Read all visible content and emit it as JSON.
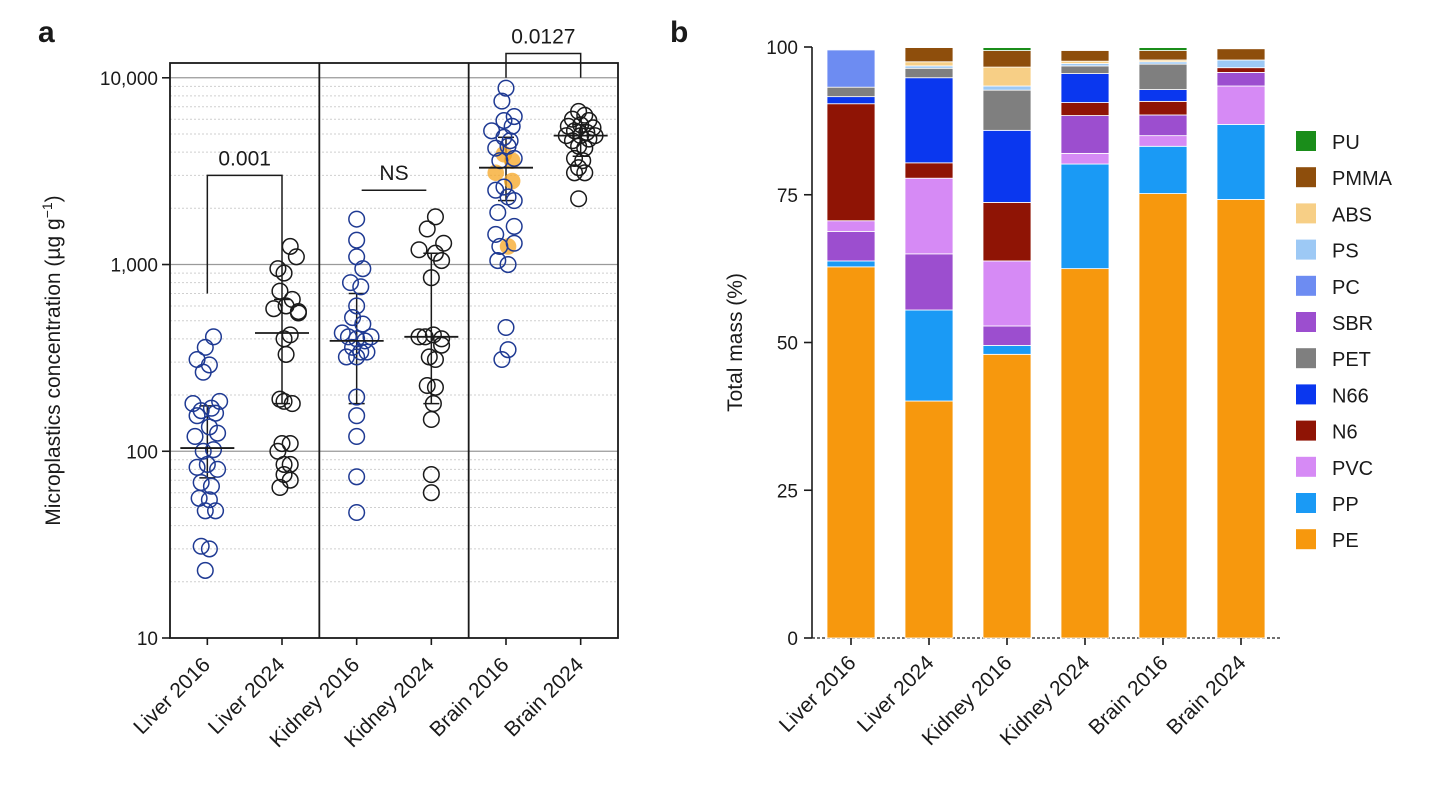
{
  "panels": {
    "a_label": "a",
    "b_label": "b"
  },
  "colors": {
    "open_marker_2016": "#1f3a93",
    "open_marker_2024": "#1a1a1a",
    "highlight_marker": "#f5a623",
    "grid": "#9a9a9a",
    "axis": "#1a1a1a"
  },
  "chart_data": [
    {
      "type": "scatter",
      "panel": "a",
      "ylabel_main": "Microplastics concentration (µg g",
      "ylabel_sup": "−1",
      "ylabel_close": ")",
      "y_scale": "log",
      "ylim": [
        10,
        12000
      ],
      "y_ticks": [
        {
          "value": 10,
          "label": "10"
        },
        {
          "value": 100,
          "label": "100"
        },
        {
          "value": 1000,
          "label": "1,000"
        },
        {
          "value": 10000,
          "label": "10,000"
        }
      ],
      "grid": true,
      "categories": [
        "Liver 2016",
        "Liver 2024",
        "Kidney 2016",
        "Kidney 2024",
        "Brain 2016",
        "Brain 2024"
      ],
      "groups": [
        {
          "category": "Liver 2016",
          "color": "open_marker_2016",
          "median": 104,
          "whisker_low": 72,
          "whisker_high": 175,
          "points": [
            {
              "dx": -0.35,
              "v": 180
            },
            {
              "dx": -0.15,
              "v": 165
            },
            {
              "dx": 0.1,
              "v": 170
            },
            {
              "dx": 0.3,
              "v": 185
            },
            {
              "dx": -0.25,
              "v": 155
            },
            {
              "dx": 0.2,
              "v": 160
            },
            {
              "dx": -0.3,
              "v": 120
            },
            {
              "dx": 0.05,
              "v": 135
            },
            {
              "dx": 0.25,
              "v": 125
            },
            {
              "dx": -0.1,
              "v": 100
            },
            {
              "dx": 0.15,
              "v": 102
            },
            {
              "dx": -0.25,
              "v": 82
            },
            {
              "dx": 0.0,
              "v": 85
            },
            {
              "dx": 0.25,
              "v": 80
            },
            {
              "dx": -0.15,
              "v": 68
            },
            {
              "dx": 0.1,
              "v": 65
            },
            {
              "dx": -0.2,
              "v": 56
            },
            {
              "dx": 0.05,
              "v": 55
            },
            {
              "dx": -0.05,
              "v": 48
            },
            {
              "dx": 0.2,
              "v": 48
            },
            {
              "dx": -0.15,
              "v": 31
            },
            {
              "dx": 0.05,
              "v": 30
            },
            {
              "dx": -0.05,
              "v": 23
            },
            {
              "dx": -0.25,
              "v": 310
            },
            {
              "dx": 0.05,
              "v": 290
            },
            {
              "dx": -0.05,
              "v": 360
            },
            {
              "dx": 0.15,
              "v": 410
            },
            {
              "dx": -0.1,
              "v": 265
            }
          ]
        },
        {
          "category": "Liver 2024",
          "color": "open_marker_2024",
          "median": 430,
          "whisker_low": 180,
          "whisker_high": 650,
          "points": [
            {
              "dx": 0.2,
              "v": 1250
            },
            {
              "dx": 0.35,
              "v": 1100
            },
            {
              "dx": -0.1,
              "v": 950
            },
            {
              "dx": 0.05,
              "v": 900
            },
            {
              "dx": -0.05,
              "v": 720
            },
            {
              "dx": 0.25,
              "v": 650
            },
            {
              "dx": 0.1,
              "v": 600
            },
            {
              "dx": -0.2,
              "v": 580
            },
            {
              "dx": 0.4,
              "v": 560
            },
            {
              "dx": 0.2,
              "v": 420
            },
            {
              "dx": 0.05,
              "v": 400
            },
            {
              "dx": 0.1,
              "v": 330
            },
            {
              "dx": -0.05,
              "v": 190
            },
            {
              "dx": 0.05,
              "v": 185
            },
            {
              "dx": 0.25,
              "v": 180
            },
            {
              "dx": 0.0,
              "v": 110
            },
            {
              "dx": 0.2,
              "v": 110
            },
            {
              "dx": -0.1,
              "v": 100
            },
            {
              "dx": 0.05,
              "v": 85
            },
            {
              "dx": 0.2,
              "v": 85
            },
            {
              "dx": 0.05,
              "v": 75
            },
            {
              "dx": 0.2,
              "v": 70
            },
            {
              "dx": -0.05,
              "v": 64
            },
            {
              "dx": 0.4,
              "v": 550
            }
          ]
        },
        {
          "category": "Kidney 2016",
          "color": "open_marker_2016",
          "median": 390,
          "whisker_low": 180,
          "whisker_high": 700,
          "points": [
            {
              "dx": 0.0,
              "v": 1750
            },
            {
              "dx": 0.0,
              "v": 1350
            },
            {
              "dx": 0.0,
              "v": 1100
            },
            {
              "dx": 0.15,
              "v": 950
            },
            {
              "dx": -0.15,
              "v": 800
            },
            {
              "dx": 0.1,
              "v": 760
            },
            {
              "dx": 0.0,
              "v": 600
            },
            {
              "dx": -0.1,
              "v": 520
            },
            {
              "dx": 0.15,
              "v": 480
            },
            {
              "dx": -0.35,
              "v": 430
            },
            {
              "dx": -0.2,
              "v": 410
            },
            {
              "dx": 0.0,
              "v": 400
            },
            {
              "dx": 0.2,
              "v": 390
            },
            {
              "dx": -0.1,
              "v": 360
            },
            {
              "dx": 0.1,
              "v": 340
            },
            {
              "dx": -0.25,
              "v": 320
            },
            {
              "dx": 0.0,
              "v": 320
            },
            {
              "dx": 0.25,
              "v": 340
            },
            {
              "dx": 0.0,
              "v": 195
            },
            {
              "dx": 0.0,
              "v": 155
            },
            {
              "dx": 0.0,
              "v": 120
            },
            {
              "dx": 0.0,
              "v": 73
            },
            {
              "dx": 0.0,
              "v": 47
            },
            {
              "dx": 0.35,
              "v": 410
            }
          ]
        },
        {
          "category": "Kidney 2024",
          "color": "open_marker_2024",
          "median": 410,
          "whisker_low": 180,
          "whisker_high": 1150,
          "points": [
            {
              "dx": 0.1,
              "v": 1800
            },
            {
              "dx": -0.1,
              "v": 1550
            },
            {
              "dx": 0.3,
              "v": 1300
            },
            {
              "dx": -0.3,
              "v": 1200
            },
            {
              "dx": 0.1,
              "v": 1150
            },
            {
              "dx": 0.25,
              "v": 1050
            },
            {
              "dx": 0.0,
              "v": 850
            },
            {
              "dx": -0.3,
              "v": 410
            },
            {
              "dx": -0.15,
              "v": 410
            },
            {
              "dx": 0.05,
              "v": 420
            },
            {
              "dx": 0.25,
              "v": 370
            },
            {
              "dx": -0.05,
              "v": 320
            },
            {
              "dx": 0.1,
              "v": 310
            },
            {
              "dx": -0.1,
              "v": 225
            },
            {
              "dx": 0.1,
              "v": 220
            },
            {
              "dx": 0.05,
              "v": 180
            },
            {
              "dx": 0.0,
              "v": 148
            },
            {
              "dx": 0.0,
              "v": 75
            },
            {
              "dx": 0.0,
              "v": 60
            },
            {
              "dx": 0.25,
              "v": 400
            }
          ]
        },
        {
          "category": "Brain 2016",
          "color": "open_marker_2016",
          "median": 3300,
          "whisker_low": 2200,
          "whisker_high": 4800,
          "points": [
            {
              "dx": 0.0,
              "v": 8800
            },
            {
              "dx": -0.1,
              "v": 7500
            },
            {
              "dx": 0.2,
              "v": 6200
            },
            {
              "dx": -0.05,
              "v": 5900
            },
            {
              "dx": 0.15,
              "v": 5500
            },
            {
              "dx": -0.35,
              "v": 5200
            },
            {
              "dx": -0.05,
              "v": 4800
            },
            {
              "dx": 0.1,
              "v": 4600
            },
            {
              "dx": -0.25,
              "v": 4200
            },
            {
              "dx": 0.05,
              "v": 4300
            },
            {
              "dx": -0.15,
              "v": 3600
            },
            {
              "dx": 0.2,
              "v": 3700
            },
            {
              "dx": -0.25,
              "v": 2500
            },
            {
              "dx": -0.05,
              "v": 2600
            },
            {
              "dx": 0.05,
              "v": 2300
            },
            {
              "dx": 0.2,
              "v": 2200
            },
            {
              "dx": -0.2,
              "v": 1900
            },
            {
              "dx": 0.2,
              "v": 1600
            },
            {
              "dx": -0.25,
              "v": 1450
            },
            {
              "dx": 0.2,
              "v": 1300
            },
            {
              "dx": -0.15,
              "v": 1250
            },
            {
              "dx": -0.2,
              "v": 1050
            },
            {
              "dx": 0.05,
              "v": 1000
            },
            {
              "dx": 0.0,
              "v": 460
            },
            {
              "dx": 0.05,
              "v": 350
            },
            {
              "dx": -0.1,
              "v": 310
            }
          ],
          "highlighted": [
            {
              "dx": -0.05,
              "v": 3900
            },
            {
              "dx": 0.15,
              "v": 3600
            },
            {
              "dx": -0.25,
              "v": 3100
            },
            {
              "dx": 0.15,
              "v": 2800
            },
            {
              "dx": 0.05,
              "v": 1250
            }
          ]
        },
        {
          "category": "Brain 2024",
          "color": "open_marker_2024",
          "median": 4900,
          "whisker_low": 3800,
          "whisker_high": 5600,
          "points": [
            {
              "dx": -0.05,
              "v": 6600
            },
            {
              "dx": 0.1,
              "v": 6300
            },
            {
              "dx": -0.2,
              "v": 6000
            },
            {
              "dx": 0.2,
              "v": 5900
            },
            {
              "dx": -0.3,
              "v": 5500
            },
            {
              "dx": 0.0,
              "v": 5600
            },
            {
              "dx": 0.3,
              "v": 5400
            },
            {
              "dx": -0.15,
              "v": 5200
            },
            {
              "dx": 0.15,
              "v": 5100
            },
            {
              "dx": -0.35,
              "v": 4900
            },
            {
              "dx": 0.0,
              "v": 4900
            },
            {
              "dx": 0.35,
              "v": 4900
            },
            {
              "dx": -0.2,
              "v": 4600
            },
            {
              "dx": 0.2,
              "v": 4700
            },
            {
              "dx": -0.05,
              "v": 4300
            },
            {
              "dx": 0.1,
              "v": 4200
            },
            {
              "dx": -0.15,
              "v": 3700
            },
            {
              "dx": 0.05,
              "v": 3600
            },
            {
              "dx": -0.05,
              "v": 3300
            },
            {
              "dx": -0.15,
              "v": 3100
            },
            {
              "dx": 0.1,
              "v": 3100
            },
            {
              "dx": -0.05,
              "v": 2250
            }
          ]
        }
      ],
      "significance": [
        {
          "from": "Liver 2016",
          "to": "Liver 2024",
          "label": "0.001",
          "y_left": 700,
          "y_right": 600,
          "y_top": 3000
        },
        {
          "from": "Kidney 2016",
          "to": "Kidney 2024",
          "label": "NS",
          "y_flat": 2500
        },
        {
          "from": "Brain 2016",
          "to": "Brain 2024",
          "label": "0.0127",
          "y_left": 10000,
          "y_right": 10000,
          "y_top": 13500
        }
      ],
      "section_dividers_after": [
        "Liver 2024",
        "Kidney 2024"
      ]
    },
    {
      "type": "bar",
      "stacked": true,
      "panel": "b",
      "ylabel": "Total mass (%)",
      "ylim": [
        0,
        100
      ],
      "y_ticks": [
        0,
        25,
        50,
        75,
        100
      ],
      "categories": [
        "Liver 2016",
        "Liver 2024",
        "Kidney 2016",
        "Kidney 2024",
        "Brain 2016",
        "Brain 2024"
      ],
      "legend_position": "right",
      "series": [
        {
          "name": "PE",
          "color": "#f7980d",
          "values": [
            62.8,
            40.1,
            48.0,
            62.5,
            75.2,
            74.2
          ]
        },
        {
          "name": "PP",
          "color": "#1a9af5",
          "values": [
            1.0,
            15.4,
            1.5,
            17.7,
            8.0,
            12.7
          ]
        },
        {
          "name": "PVC",
          "color": "#d68af5",
          "values": [
            0.0,
            0.0,
            0.0,
            1.8,
            1.8,
            6.5
          ]
        },
        {
          "name": "SBR",
          "color": "#9c4ecf",
          "values": [
            5.0,
            9.5,
            3.3,
            6.4,
            3.5,
            2.3
          ]
        },
        {
          "name": "PVC",
          "color": "#d68af5",
          "values": [
            1.8,
            12.8,
            11.0,
            0.0,
            0.0,
            0.0
          ]
        },
        {
          "name": "N6",
          "color": "#8f1405",
          "values": [
            19.8,
            2.6,
            9.9,
            2.2,
            2.3,
            0.8
          ]
        },
        {
          "name": "N66",
          "color": "#0a37ef",
          "values": [
            1.2,
            14.4,
            12.2,
            4.9,
            2.0,
            0.0
          ]
        },
        {
          "name": "PET",
          "color": "#7f7f7f",
          "values": [
            1.6,
            1.6,
            6.8,
            1.3,
            4.3,
            0.0
          ]
        },
        {
          "name": "PC",
          "color": "#6d8cf2",
          "values": [
            6.3,
            0.0,
            0.0,
            0.0,
            0.0,
            0.0
          ]
        },
        {
          "name": "PS",
          "color": "#9dc9f5",
          "values": [
            0.0,
            0.4,
            0.7,
            0.4,
            0.4,
            1.3
          ]
        },
        {
          "name": "ABS",
          "color": "#f7cf86",
          "values": [
            0.0,
            0.7,
            3.2,
            0.4,
            0.3,
            0.0
          ]
        },
        {
          "name": "PMMA",
          "color": "#8e4e0c",
          "values": [
            0.0,
            2.4,
            2.8,
            1.8,
            1.6,
            1.9
          ]
        },
        {
          "name": "PU",
          "color": "#1a8d1a",
          "values": [
            0.0,
            0.0,
            0.5,
            0.0,
            0.5,
            0.0
          ]
        }
      ],
      "legend": [
        {
          "name": "PU",
          "color": "#1a8d1a"
        },
        {
          "name": "PMMA",
          "color": "#8e4e0c"
        },
        {
          "name": "ABS",
          "color": "#f7cf86"
        },
        {
          "name": "PS",
          "color": "#9dc9f5"
        },
        {
          "name": "PC",
          "color": "#6d8cf2"
        },
        {
          "name": "SBR",
          "color": "#9c4ecf"
        },
        {
          "name": "PET",
          "color": "#7f7f7f"
        },
        {
          "name": "N66",
          "color": "#0a37ef"
        },
        {
          "name": "N6",
          "color": "#8f1405"
        },
        {
          "name": "PVC",
          "color": "#d68af5"
        },
        {
          "name": "PP",
          "color": "#1a9af5"
        },
        {
          "name": "PE",
          "color": "#f7980d"
        }
      ]
    }
  ]
}
